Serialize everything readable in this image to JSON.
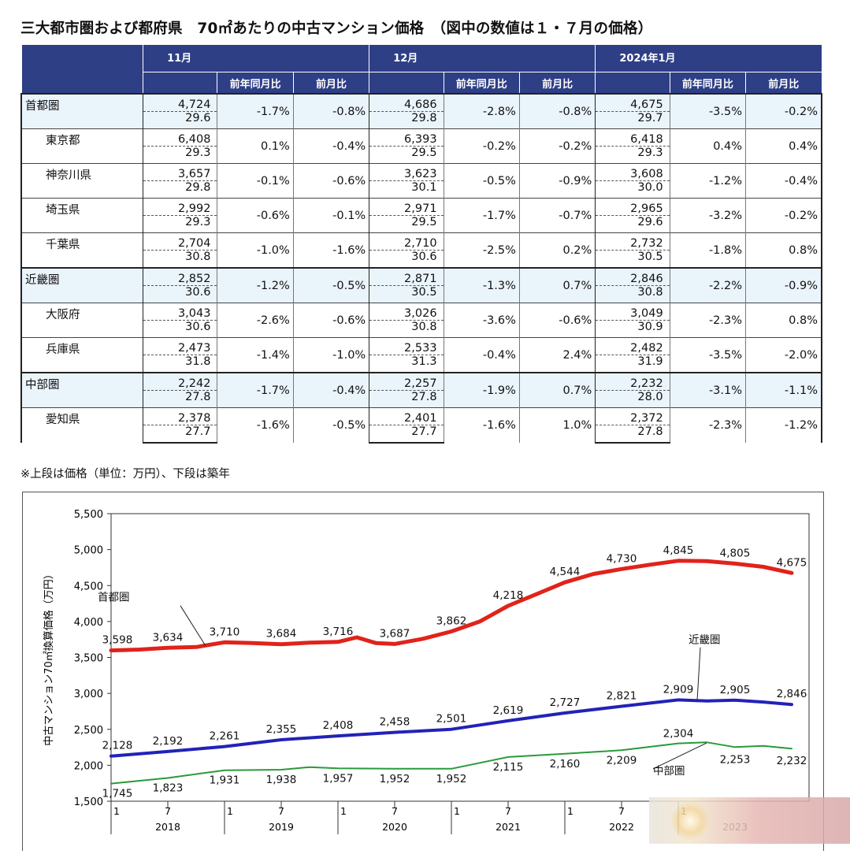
{
  "title": "三大都市圏および都府県　70㎡あたりの中古マンション価格　（図中の数値は１・７月の価格）",
  "table": {
    "months": [
      "11月",
      "12月",
      "2024年1月"
    ],
    "sub_yoy": "前年同月比",
    "sub_mom": "前月比",
    "rows": [
      {
        "name": "首都圏",
        "group": true,
        "cells": [
          {
            "price": "4,724",
            "age": "29.6",
            "yoy": "-1.7%",
            "mom": "-0.8%"
          },
          {
            "price": "4,686",
            "age": "29.8",
            "yoy": "-2.8%",
            "mom": "-0.8%"
          },
          {
            "price": "4,675",
            "age": "29.7",
            "yoy": "-3.5%",
            "mom": "-0.2%"
          }
        ]
      },
      {
        "name": "東京都",
        "group": false,
        "cells": [
          {
            "price": "6,408",
            "age": "29.3",
            "yoy": "0.1%",
            "mom": "-0.4%"
          },
          {
            "price": "6,393",
            "age": "29.5",
            "yoy": "-0.2%",
            "mom": "-0.2%"
          },
          {
            "price": "6,418",
            "age": "29.3",
            "yoy": "0.4%",
            "mom": "0.4%"
          }
        ]
      },
      {
        "name": "神奈川県",
        "group": false,
        "cells": [
          {
            "price": "3,657",
            "age": "29.8",
            "yoy": "-0.1%",
            "mom": "-0.6%"
          },
          {
            "price": "3,623",
            "age": "30.1",
            "yoy": "-0.5%",
            "mom": "-0.9%"
          },
          {
            "price": "3,608",
            "age": "30.0",
            "yoy": "-1.2%",
            "mom": "-0.4%"
          }
        ]
      },
      {
        "name": "埼玉県",
        "group": false,
        "cells": [
          {
            "price": "2,992",
            "age": "29.3",
            "yoy": "-0.6%",
            "mom": "-0.1%"
          },
          {
            "price": "2,971",
            "age": "29.5",
            "yoy": "-1.7%",
            "mom": "-0.7%"
          },
          {
            "price": "2,965",
            "age": "29.6",
            "yoy": "-3.2%",
            "mom": "-0.2%"
          }
        ]
      },
      {
        "name": "千葉県",
        "group": false,
        "cells": [
          {
            "price": "2,704",
            "age": "30.8",
            "yoy": "-1.0%",
            "mom": "-1.6%"
          },
          {
            "price": "2,710",
            "age": "30.6",
            "yoy": "-2.5%",
            "mom": "0.2%"
          },
          {
            "price": "2,732",
            "age": "30.5",
            "yoy": "-1.8%",
            "mom": "0.8%"
          }
        ]
      },
      {
        "name": "近畿圏",
        "group": true,
        "cells": [
          {
            "price": "2,852",
            "age": "30.6",
            "yoy": "-1.2%",
            "mom": "-0.5%"
          },
          {
            "price": "2,871",
            "age": "30.5",
            "yoy": "-1.3%",
            "mom": "0.7%"
          },
          {
            "price": "2,846",
            "age": "30.8",
            "yoy": "-2.2%",
            "mom": "-0.9%"
          }
        ]
      },
      {
        "name": "大阪府",
        "group": false,
        "cells": [
          {
            "price": "3,043",
            "age": "30.6",
            "yoy": "-2.6%",
            "mom": "-0.6%"
          },
          {
            "price": "3,026",
            "age": "30.8",
            "yoy": "-3.6%",
            "mom": "-0.6%"
          },
          {
            "price": "3,049",
            "age": "30.9",
            "yoy": "-2.3%",
            "mom": "0.8%"
          }
        ]
      },
      {
        "name": "兵庫県",
        "group": false,
        "cells": [
          {
            "price": "2,473",
            "age": "31.8",
            "yoy": "-1.4%",
            "mom": "-1.0%"
          },
          {
            "price": "2,533",
            "age": "31.3",
            "yoy": "-0.4%",
            "mom": "2.4%"
          },
          {
            "price": "2,482",
            "age": "31.9",
            "yoy": "-3.5%",
            "mom": "-2.0%"
          }
        ]
      },
      {
        "name": "中部圏",
        "group": true,
        "cells": [
          {
            "price": "2,242",
            "age": "27.8",
            "yoy": "-1.7%",
            "mom": "-0.4%"
          },
          {
            "price": "2,257",
            "age": "27.8",
            "yoy": "-1.9%",
            "mom": "0.7%"
          },
          {
            "price": "2,232",
            "age": "28.0",
            "yoy": "-3.1%",
            "mom": "-1.1%"
          }
        ]
      },
      {
        "name": "愛知県",
        "group": false,
        "cells": [
          {
            "price": "2,378",
            "age": "27.7",
            "yoy": "-1.6%",
            "mom": "-0.5%"
          },
          {
            "price": "2,401",
            "age": "27.7",
            "yoy": "-1.6%",
            "mom": "1.0%"
          },
          {
            "price": "2,372",
            "age": "27.8",
            "yoy": "-2.3%",
            "mom": "-1.2%"
          }
        ]
      }
    ]
  },
  "note": "※上段は価格（単位：万円）、下段は築年",
  "chart_data": {
    "type": "line",
    "ylabel": "中古マンション70㎡換算価格（万円）",
    "ylim": [
      1500,
      5500
    ],
    "yticks": [
      "1,500",
      "2,000",
      "2,500",
      "3,000",
      "3,500",
      "4,000",
      "4,500",
      "5,000",
      "5,500"
    ],
    "x_start": "2018-01",
    "x_end": "2024-01",
    "x_month_ticks": [
      "1",
      "7",
      "1",
      "7",
      "1",
      "7",
      "1",
      "7",
      "1",
      "7",
      "1"
    ],
    "x_years": [
      "2018",
      "2019",
      "2020",
      "2021",
      "2022",
      "2023"
    ],
    "grid": false,
    "series": [
      {
        "name": "首都圏",
        "color": "#e0231b",
        "width": 5,
        "points": [
          [
            "2018-01",
            3598
          ],
          [
            "2018-04",
            3610
          ],
          [
            "2018-07",
            3634
          ],
          [
            "2018-10",
            3645
          ],
          [
            "2019-01",
            3710
          ],
          [
            "2019-04",
            3700
          ],
          [
            "2019-07",
            3684
          ],
          [
            "2019-10",
            3705
          ],
          [
            "2020-01",
            3716
          ],
          [
            "2020-03",
            3780
          ],
          [
            "2020-05",
            3700
          ],
          [
            "2020-07",
            3687
          ],
          [
            "2020-10",
            3760
          ],
          [
            "2021-01",
            3862
          ],
          [
            "2021-04",
            4000
          ],
          [
            "2021-07",
            4218
          ],
          [
            "2021-10",
            4380
          ],
          [
            "2022-01",
            4544
          ],
          [
            "2022-04",
            4660
          ],
          [
            "2022-07",
            4730
          ],
          [
            "2022-10",
            4790
          ],
          [
            "2023-01",
            4845
          ],
          [
            "2023-04",
            4840
          ],
          [
            "2023-07",
            4805
          ],
          [
            "2023-10",
            4760
          ],
          [
            "2024-01",
            4675
          ]
        ],
        "labels": [
          [
            "2018-01",
            3598,
            "3,598"
          ],
          [
            "2018-07",
            3634,
            "3,634"
          ],
          [
            "2019-01",
            3710,
            "3,710"
          ],
          [
            "2019-07",
            3684,
            "3,684"
          ],
          [
            "2020-01",
            3716,
            "3,716"
          ],
          [
            "2020-07",
            3687,
            "3,687"
          ],
          [
            "2021-01",
            3862,
            "3,862"
          ],
          [
            "2021-07",
            4218,
            "4,218"
          ],
          [
            "2022-01",
            4544,
            "4,544"
          ],
          [
            "2022-07",
            4730,
            "4,730"
          ],
          [
            "2023-01",
            4845,
            "4,845"
          ],
          [
            "2023-07",
            4805,
            "4,805"
          ],
          [
            "2024-01",
            4675,
            "4,675"
          ]
        ]
      },
      {
        "name": "近畿圏",
        "color": "#2222b8",
        "width": 4,
        "points": [
          [
            "2018-01",
            2128
          ],
          [
            "2018-07",
            2192
          ],
          [
            "2019-01",
            2261
          ],
          [
            "2019-07",
            2355
          ],
          [
            "2020-01",
            2408
          ],
          [
            "2020-07",
            2458
          ],
          [
            "2021-01",
            2501
          ],
          [
            "2021-07",
            2619
          ],
          [
            "2022-01",
            2727
          ],
          [
            "2022-07",
            2821
          ],
          [
            "2023-01",
            2909
          ],
          [
            "2023-04",
            2895
          ],
          [
            "2023-07",
            2905
          ],
          [
            "2023-10",
            2880
          ],
          [
            "2024-01",
            2846
          ]
        ],
        "labels": [
          [
            "2018-01",
            2128,
            "2,128"
          ],
          [
            "2018-07",
            2192,
            "2,192"
          ],
          [
            "2019-01",
            2261,
            "2,261"
          ],
          [
            "2019-07",
            2355,
            "2,355"
          ],
          [
            "2020-01",
            2408,
            "2,408"
          ],
          [
            "2020-07",
            2458,
            "2,458"
          ],
          [
            "2021-01",
            2501,
            "2,501"
          ],
          [
            "2021-07",
            2619,
            "2,619"
          ],
          [
            "2022-01",
            2727,
            "2,727"
          ],
          [
            "2022-07",
            2821,
            "2,821"
          ],
          [
            "2023-01",
            2909,
            "2,909"
          ],
          [
            "2023-07",
            2905,
            "2,905"
          ],
          [
            "2024-01",
            2846,
            "2,846"
          ]
        ]
      },
      {
        "name": "中部圏",
        "color": "#2a9a3a",
        "width": 2,
        "points": [
          [
            "2018-01",
            1745
          ],
          [
            "2018-07",
            1823
          ],
          [
            "2019-01",
            1931
          ],
          [
            "2019-07",
            1938
          ],
          [
            "2019-10",
            1975
          ],
          [
            "2020-01",
            1957
          ],
          [
            "2020-07",
            1952
          ],
          [
            "2021-01",
            1952
          ],
          [
            "2021-07",
            2115
          ],
          [
            "2022-01",
            2160
          ],
          [
            "2022-07",
            2209
          ],
          [
            "2023-01",
            2304
          ],
          [
            "2023-04",
            2320
          ],
          [
            "2023-07",
            2253
          ],
          [
            "2023-10",
            2270
          ],
          [
            "2024-01",
            2232
          ]
        ],
        "labels": [
          [
            "2018-01",
            1745,
            "1,745"
          ],
          [
            "2018-07",
            1823,
            "1,823"
          ],
          [
            "2019-01",
            1931,
            "1,931"
          ],
          [
            "2019-07",
            1938,
            "1,938"
          ],
          [
            "2020-01",
            1957,
            "1,957"
          ],
          [
            "2020-07",
            1952,
            "1,952"
          ],
          [
            "2021-01",
            1952,
            "1,952"
          ],
          [
            "2021-07",
            2115,
            "2,115"
          ],
          [
            "2022-01",
            2160,
            "2,160"
          ],
          [
            "2022-07",
            2209,
            "2,209"
          ],
          [
            "2023-01",
            2304,
            "2,304"
          ],
          [
            "2023-07",
            2253,
            "2,253"
          ],
          [
            "2024-01",
            2232,
            "2,232"
          ]
        ]
      }
    ],
    "series_labels": [
      "首都圏",
      "近畿圏",
      "中部圏"
    ]
  }
}
